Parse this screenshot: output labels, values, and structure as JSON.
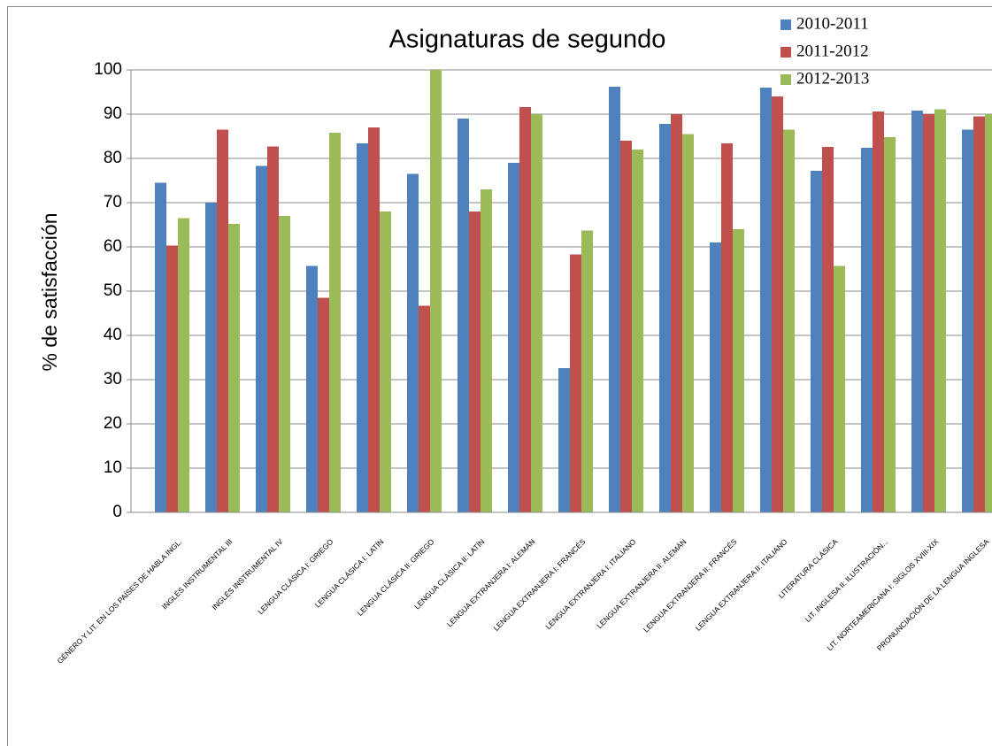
{
  "chart_data": {
    "type": "bar",
    "title": "Asignaturas de segundo",
    "y_label": "% de satisfacción",
    "categories": [
      "GÉNERO Y LIT. EN LOS PAÍSES DE HABLA INGL.",
      "INGLÉS INSTRUMENTAL III",
      "INGLÉS INSTRUMENTAL IV",
      "LENGUA CLÁSICA I: GRIEGO",
      "LENGUA CLÁSICA I: LATÍN",
      "LENGUA CLÁSICA II: GRIEGO",
      "LENGUA CLÁSICA II: LATÍN",
      "LENGUA EXTRANJERA I: ALEMÁN",
      "LENGUA EXTRANJERA I: FRANCÉS",
      "LENGUA EXTRANJERA I: ITALIANO",
      "LENGUA EXTRANJERA II: ALEMÁN",
      "LENGUA EXTRANJERA II: FRANCÉS",
      "LENGUA EXTRANJERA II: ITALIANO",
      "LITERATURA CLÁSICA",
      "LIT. INGLESA II: ILUSTRACIÓN...",
      "LIT. NORTEAMERICANA I: SIGLOS XVIII-XIX",
      "PRONUNCIACIÓN DE LA LENGUA INGLESA"
    ],
    "series": [
      {
        "name": "2010-2011",
        "color": "#4f81bd",
        "values": [
          74.5,
          70,
          78.3,
          55.7,
          83.4,
          76.5,
          89,
          79,
          32.6,
          96.2,
          87.8,
          61,
          96,
          77.2,
          82.4,
          90.8,
          86.5
        ]
      },
      {
        "name": "2011-2012",
        "color": "#c0504d",
        "values": [
          60.3,
          86.5,
          82.7,
          48.5,
          87,
          46.7,
          68,
          91.6,
          58.3,
          84,
          90,
          83.4,
          94,
          82.6,
          90.6,
          90,
          89.5
        ]
      },
      {
        "name": "2012-2013",
        "color": "#9bbb59",
        "values": [
          66.5,
          65.2,
          67,
          85.8,
          68,
          100,
          73,
          90,
          63.7,
          82,
          85.5,
          64,
          86.5,
          55.7,
          84.8,
          91.1,
          90
        ]
      }
    ],
    "ylim": [
      0,
      100
    ],
    "yticks": [
      0,
      10,
      20,
      30,
      40,
      50,
      60,
      70,
      80,
      90,
      100
    ],
    "grid": true
  }
}
